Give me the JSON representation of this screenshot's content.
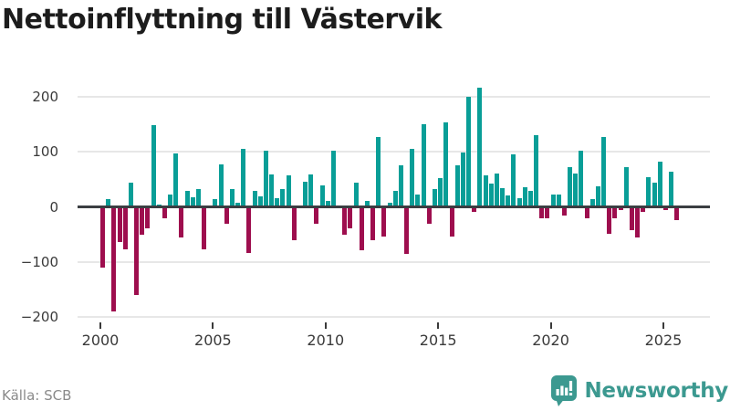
{
  "title": "Nettoinflyttning till Västervik",
  "source": "Källa: SCB",
  "branding": {
    "name": "Newsworthy",
    "icon": "newsworthy-chart-bubble-icon",
    "color": "#3c9990"
  },
  "colors": {
    "positive_bar": "#099e97",
    "negative_bar": "#9e0e4e",
    "zero_line": "#3b3e42",
    "gridline": "#e7e7e7",
    "axis_text": "#3a3a3a",
    "title_text": "#1c1c1c",
    "source_text": "#8a8a8a"
  },
  "chart_data": {
    "type": "bar",
    "title": "Nettoinflyttning till Västervik",
    "xlabel": "",
    "ylabel": "",
    "frequency": "quarterly",
    "start_period": "2000Q1",
    "end_period": "2025Q3",
    "ylim": [
      -220,
      235
    ],
    "grid": "horizontal",
    "y_ticks": [
      200,
      100,
      0,
      -100,
      -200
    ],
    "y_tick_labels": [
      "200",
      "100",
      "0",
      "−100",
      "−200"
    ],
    "x_ticks": [
      2000,
      2005,
      2010,
      2015,
      2020,
      2025
    ],
    "x_tick_labels": [
      "2000",
      "2005",
      "2010",
      "2015",
      "2020",
      "2025"
    ],
    "series": [
      {
        "name": "Nettoinflyttning",
        "values": [
          -110,
          15,
          -190,
          -64,
          -76,
          44,
          -160,
          -50,
          -39,
          149,
          5,
          -20,
          23,
          97,
          -56,
          30,
          18,
          32,
          -77,
          -2,
          14,
          77,
          -31,
          33,
          7,
          105,
          -84,
          29,
          19,
          102,
          59,
          16,
          32,
          58,
          -61,
          0,
          46,
          60,
          -31,
          40,
          11,
          102,
          0,
          -50,
          -39,
          44,
          -78,
          11,
          -60,
          127,
          -53,
          8,
          30,
          75,
          -85,
          105,
          22,
          151,
          -31,
          33,
          52,
          154,
          -53,
          75,
          99,
          200,
          -8,
          217,
          57,
          43,
          61,
          34,
          21,
          95,
          16,
          36,
          30,
          130,
          -21,
          -21,
          22,
          23,
          -15,
          73,
          61,
          102,
          -20,
          14,
          37,
          127,
          -48,
          -21,
          -5,
          72,
          -42,
          -55,
          -8,
          55,
          44,
          82,
          -5,
          64,
          -24
        ]
      }
    ]
  }
}
